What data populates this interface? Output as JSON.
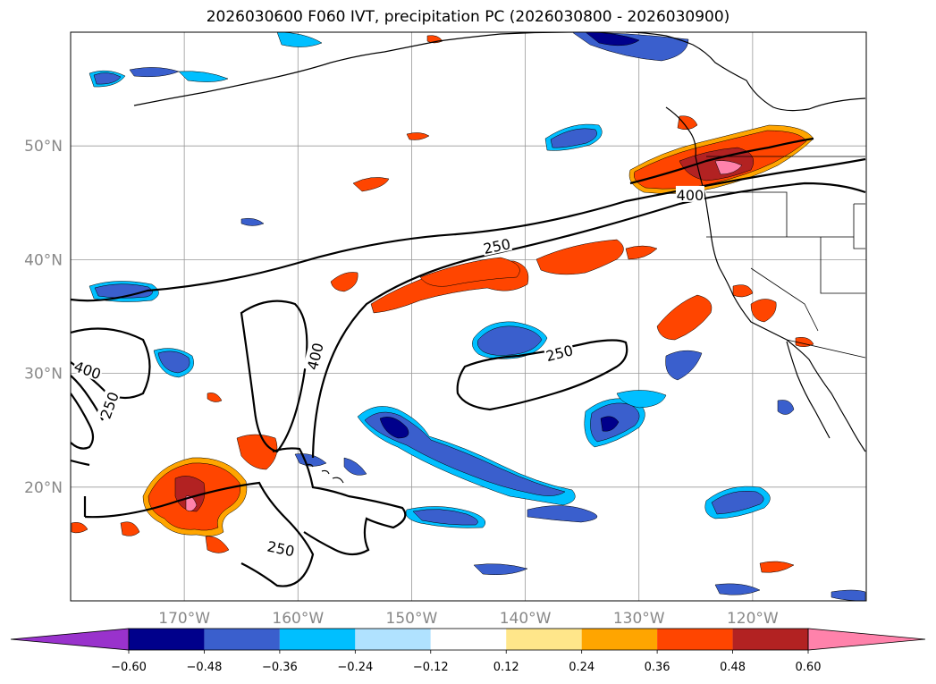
{
  "chart_data": {
    "type": "filled-contour-map",
    "title": "2026030600 F060 IVT, precipitation PC (2026030800 - 2026030900)",
    "lat_ticks": [
      {
        "value": 50,
        "label": "50°N"
      },
      {
        "value": 40,
        "label": "40°N"
      },
      {
        "value": 30,
        "label": "30°N"
      },
      {
        "value": 20,
        "label": "20°N"
      }
    ],
    "lon_ticks": [
      {
        "value": -170,
        "label": "170°W"
      },
      {
        "value": -160,
        "label": "160°W"
      },
      {
        "value": -150,
        "label": "150°W"
      },
      {
        "value": -140,
        "label": "140°W"
      },
      {
        "value": -130,
        "label": "130°W"
      },
      {
        "value": -120,
        "label": "120°W"
      }
    ],
    "lon_range": [
      -180,
      -110
    ],
    "lat_range": [
      10,
      60
    ],
    "colorbar": {
      "ticks": [
        {
          "value": -0.6,
          "label": "−0.60"
        },
        {
          "value": -0.48,
          "label": "−0.48"
        },
        {
          "value": -0.36,
          "label": "−0.36"
        },
        {
          "value": -0.24,
          "label": "−0.24"
        },
        {
          "value": -0.12,
          "label": "−0.12"
        },
        {
          "value": 0.12,
          "label": "0.12"
        },
        {
          "value": 0.24,
          "label": "0.24"
        },
        {
          "value": 0.36,
          "label": "0.36"
        },
        {
          "value": 0.48,
          "label": "0.48"
        },
        {
          "value": 0.6,
          "label": "0.60"
        }
      ],
      "colors": [
        "#9932cc",
        "#00008b",
        "#3a5fcd",
        "#00bfff",
        "#b0e2ff",
        "#ffffff",
        "#ffe68a",
        "#ffa500",
        "#ff4500",
        "#b22222",
        "#ff82ab"
      ]
    },
    "ivt_contour_levels": [
      250,
      400
    ],
    "contour_labels": [
      {
        "text": "250",
        "lon": -142.5,
        "lat": 41.2,
        "angle": -12
      },
      {
        "text": "400",
        "lon": -125.5,
        "lat": 45.7,
        "angle": 0
      },
      {
        "text": "250",
        "lon": -137,
        "lat": 31.8,
        "angle": -14
      },
      {
        "text": "400",
        "lon": -158.5,
        "lat": 31.5,
        "angle": -76
      },
      {
        "text": "400",
        "lon": -178.5,
        "lat": 30.3,
        "angle": 20
      },
      {
        "text": "250",
        "lon": -176.6,
        "lat": 27.2,
        "angle": -70
      },
      {
        "text": "250",
        "lon": -161.5,
        "lat": 14.6,
        "angle": 12
      }
    ]
  }
}
